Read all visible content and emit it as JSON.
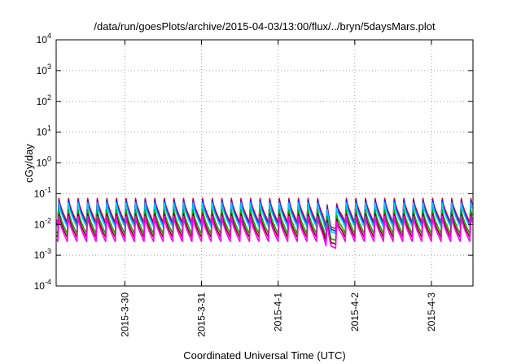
{
  "chart_data": {
    "type": "line",
    "title": "/data/run/goesPlots/archive/2015-04-03/13:00/flux/../bryn/5daysMars.plot",
    "xlabel": "Coordinated Universal Time (UTC)",
    "ylabel": "cGy/day",
    "yscale": "log",
    "ylim": [
      0.0001,
      10000
    ],
    "xlim": [
      "2015-03-29T02:30",
      "2015-04-03T13:00"
    ],
    "x_ticks": [
      {
        "label": "2015-3-30",
        "date": "2015-03-30T00:00"
      },
      {
        "label": "2015-3-31",
        "date": "2015-03-31T00:00"
      },
      {
        "label": "2015-4-1",
        "date": "2015-04-01T00:00"
      },
      {
        "label": "2015-4-2",
        "date": "2015-04-02T00:00"
      },
      {
        "label": "2015-4-3",
        "date": "2015-04-03T00:00"
      }
    ],
    "y_ticks": [
      {
        "base": "10",
        "exp": "-4",
        "value": 0.0001
      },
      {
        "base": "10",
        "exp": "-3",
        "value": 0.001
      },
      {
        "base": "10",
        "exp": "-2",
        "value": 0.01
      },
      {
        "base": "10",
        "exp": "-1",
        "value": 0.1
      },
      {
        "base": "10",
        "exp": "0",
        "value": 1
      },
      {
        "base": "10",
        "exp": "1",
        "value": 10
      },
      {
        "base": "10",
        "exp": "2",
        "value": 100
      },
      {
        "base": "10",
        "exp": "3",
        "value": 1000
      },
      {
        "base": "10",
        "exp": "4",
        "value": 10000
      }
    ],
    "grid": true,
    "legend": "none",
    "sawtooth_period_hours": 3,
    "dip": {
      "start": "2015-04-01T14:00",
      "min": "2015-04-01T16:30",
      "end": "2015-04-01T20:00",
      "depth_factor": 0.3
    },
    "series": [
      {
        "color": "#ff0000",
        "peak": 0.07,
        "trough": 0.012
      },
      {
        "color": "#2020ff",
        "peak": 0.062,
        "trough": 0.01
      },
      {
        "color": "#00c8ff",
        "peak": 0.05,
        "trough": 0.0085
      },
      {
        "color": "#00b000",
        "peak": 0.03,
        "trough": 0.005
      },
      {
        "color": "#8b0000",
        "peak": 0.022,
        "trough": 0.0038
      },
      {
        "color": "#ff00ff",
        "peak": 0.018,
        "trough": 0.0028
      }
    ]
  }
}
